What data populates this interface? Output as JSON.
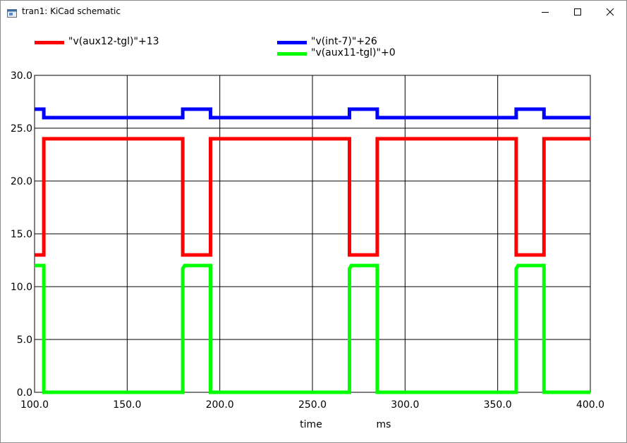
{
  "window": {
    "title": "tran1: KiCad schematic",
    "icons": {
      "app": "kicad-app-icon",
      "minimize": "minimize-icon",
      "maximize": "maximize-icon",
      "close": "close-icon"
    }
  },
  "chart_data": {
    "type": "line",
    "title": "",
    "xlabel": "time",
    "xunit": "ms",
    "ylabel": "",
    "xlim": [
      100,
      400
    ],
    "ylim": [
      0,
      30
    ],
    "xticks": [
      100,
      150,
      200,
      250,
      300,
      350,
      400
    ],
    "xtick_labels": [
      "100.0",
      "150.0",
      "200.0",
      "250.0",
      "300.0",
      "350.0",
      "400.0"
    ],
    "yticks": [
      0,
      5,
      10,
      15,
      20,
      25,
      30
    ],
    "ytick_labels": [
      "0.0",
      "5.0",
      "10.0",
      "15.0",
      "20.0",
      "25.0",
      "30.0"
    ],
    "grid": true,
    "legend_position": "top",
    "series": [
      {
        "name": "\"v(aux12-tgl)\"+13",
        "color": "#ff0000",
        "x": [
          100,
          105,
          105,
          180,
          180,
          195,
          195,
          270,
          270,
          285,
          285,
          360,
          360,
          375,
          375,
          400
        ],
        "y": [
          13,
          13,
          24,
          24,
          13,
          13,
          24,
          24,
          13,
          13,
          24,
          24,
          13,
          13,
          24,
          24
        ]
      },
      {
        "name": "\"v(int-7)\"+26",
        "color": "#0000ff",
        "x": [
          100,
          105,
          105,
          180,
          180,
          195,
          195,
          270,
          270,
          285,
          285,
          360,
          360,
          375,
          375,
          400
        ],
        "y": [
          26.8,
          26.8,
          26,
          26,
          26.8,
          26.8,
          26,
          26,
          26.8,
          26.8,
          26,
          26,
          26.8,
          26.8,
          26,
          26
        ]
      },
      {
        "name": "\"v(aux11-tgl)\"+0",
        "color": "#00ff00",
        "x": [
          100,
          105,
          105,
          180,
          180,
          181,
          195,
          195,
          270,
          270,
          271,
          285,
          285,
          360,
          360,
          361,
          375,
          375,
          400
        ],
        "y": [
          12,
          12,
          0,
          0,
          11.7,
          12,
          12,
          0,
          0,
          11.7,
          12,
          12,
          0,
          0,
          11.7,
          12,
          12,
          0,
          0
        ]
      }
    ]
  }
}
